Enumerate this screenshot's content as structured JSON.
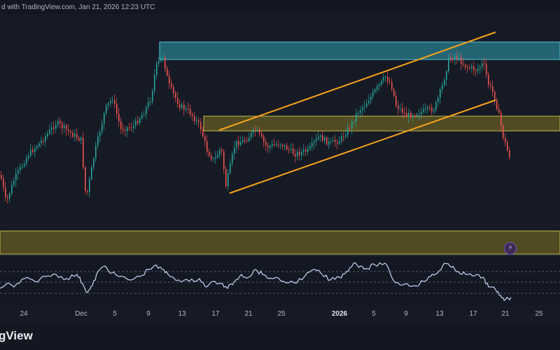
{
  "header": {
    "text": "d with TradingView.com, Jan 21, 2026 12:23 UTC"
  },
  "footer": {
    "brand": "gView"
  },
  "actions": {
    "flash_icon": "lightning-icon",
    "flash_glyph": "⚡"
  },
  "colors": {
    "background": "#161a25",
    "up_candle": "#26a69a",
    "down_candle": "#ef5350",
    "channel_line": "#f7a21b",
    "supply_zone_fill": "#2a7d8c",
    "supply_zone_border": "#4fc3d9",
    "demand_zone_fill": "#5a5523",
    "demand_zone_border": "#c6b94b",
    "oscillator_line": "#c9d3f2"
  },
  "chart_data": {
    "type": "candlestick",
    "title": "",
    "x_ticks": [
      {
        "label": "24",
        "major": false
      },
      {
        "label": "Dec",
        "major": false
      },
      {
        "label": "5",
        "major": false
      },
      {
        "label": "9",
        "major": false
      },
      {
        "label": "13",
        "major": false
      },
      {
        "label": "17",
        "major": false
      },
      {
        "label": "21",
        "major": false
      },
      {
        "label": "25",
        "major": false
      },
      {
        "label": "2026",
        "major": true
      },
      {
        "label": "5",
        "major": false
      },
      {
        "label": "9",
        "major": false
      },
      {
        "label": "13",
        "major": false
      },
      {
        "label": "17",
        "major": false
      },
      {
        "label": "21",
        "major": false
      },
      {
        "label": "25",
        "major": false
      }
    ],
    "price_path": [
      [
        0,
        250
      ],
      [
        8,
        290
      ],
      [
        20,
        255
      ],
      [
        40,
        220
      ],
      [
        60,
        200
      ],
      [
        80,
        175
      ],
      [
        100,
        190
      ],
      [
        115,
        200
      ],
      [
        122,
        285
      ],
      [
        135,
        215
      ],
      [
        150,
        155
      ],
      [
        160,
        140
      ],
      [
        172,
        185
      ],
      [
        190,
        180
      ],
      [
        205,
        160
      ],
      [
        215,
        140
      ],
      [
        222,
        95
      ],
      [
        232,
        80
      ],
      [
        240,
        120
      ],
      [
        255,
        150
      ],
      [
        270,
        160
      ],
      [
        285,
        180
      ],
      [
        295,
        215
      ],
      [
        305,
        230
      ],
      [
        315,
        210
      ],
      [
        322,
        265
      ],
      [
        335,
        205
      ],
      [
        350,
        200
      ],
      [
        365,
        185
      ],
      [
        380,
        210
      ],
      [
        400,
        205
      ],
      [
        420,
        220
      ],
      [
        440,
        215
      ],
      [
        455,
        195
      ],
      [
        470,
        205
      ],
      [
        485,
        200
      ],
      [
        500,
        180
      ],
      [
        510,
        160
      ],
      [
        520,
        150
      ],
      [
        535,
        130
      ],
      [
        550,
        110
      ],
      [
        558,
        120
      ],
      [
        565,
        150
      ],
      [
        580,
        165
      ],
      [
        600,
        160
      ],
      [
        620,
        155
      ],
      [
        632,
        120
      ],
      [
        640,
        85
      ],
      [
        650,
        80
      ],
      [
        665,
        95
      ],
      [
        680,
        100
      ],
      [
        690,
        90
      ],
      [
        697,
        120
      ],
      [
        705,
        135
      ],
      [
        712,
        165
      ],
      [
        718,
        195
      ],
      [
        724,
        215
      ],
      [
        728,
        225
      ]
    ],
    "zones": [
      {
        "name": "supply",
        "y_top": 60,
        "y_bottom": 85,
        "x_start": 228
      },
      {
        "name": "mid",
        "y_top": 166,
        "y_bottom": 187,
        "x_start": 291
      },
      {
        "name": "demand",
        "y_top": 330,
        "y_bottom": 363,
        "x_start": 0
      }
    ],
    "channel": {
      "upper": [
        [
          313,
          186
        ],
        [
          708,
          46
        ]
      ],
      "lower": [
        [
          328,
          276
        ],
        [
          708,
          143
        ]
      ]
    },
    "oscillator": [
      [
        0,
        412
      ],
      [
        10,
        405
      ],
      [
        20,
        410
      ],
      [
        35,
        398
      ],
      [
        50,
        402
      ],
      [
        65,
        395
      ],
      [
        80,
        392
      ],
      [
        95,
        398
      ],
      [
        110,
        392
      ],
      [
        118,
        405
      ],
      [
        125,
        418
      ],
      [
        132,
        408
      ],
      [
        140,
        388
      ],
      [
        150,
        380
      ],
      [
        160,
        390
      ],
      [
        170,
        395
      ],
      [
        185,
        400
      ],
      [
        200,
        395
      ],
      [
        212,
        385
      ],
      [
        220,
        380
      ],
      [
        232,
        385
      ],
      [
        240,
        392
      ],
      [
        255,
        400
      ],
      [
        270,
        402
      ],
      [
        285,
        398
      ],
      [
        295,
        410
      ],
      [
        305,
        402
      ],
      [
        315,
        405
      ],
      [
        325,
        412
      ],
      [
        335,
        402
      ],
      [
        345,
        392
      ],
      [
        355,
        396
      ],
      [
        365,
        385
      ],
      [
        375,
        392
      ],
      [
        390,
        398
      ],
      [
        405,
        402
      ],
      [
        420,
        404
      ],
      [
        435,
        395
      ],
      [
        450,
        385
      ],
      [
        460,
        392
      ],
      [
        472,
        400
      ],
      [
        485,
        396
      ],
      [
        495,
        388
      ],
      [
        505,
        376
      ],
      [
        515,
        380
      ],
      [
        525,
        384
      ],
      [
        535,
        378
      ],
      [
        550,
        376
      ],
      [
        558,
        392
      ],
      [
        565,
        404
      ],
      [
        578,
        406
      ],
      [
        592,
        408
      ],
      [
        605,
        402
      ],
      [
        615,
        395
      ],
      [
        625,
        390
      ],
      [
        635,
        376
      ],
      [
        645,
        382
      ],
      [
        655,
        388
      ],
      [
        665,
        392
      ],
      [
        678,
        394
      ],
      [
        690,
        396
      ],
      [
        698,
        410
      ],
      [
        708,
        414
      ],
      [
        715,
        422
      ],
      [
        722,
        428
      ],
      [
        730,
        425
      ]
    ]
  }
}
